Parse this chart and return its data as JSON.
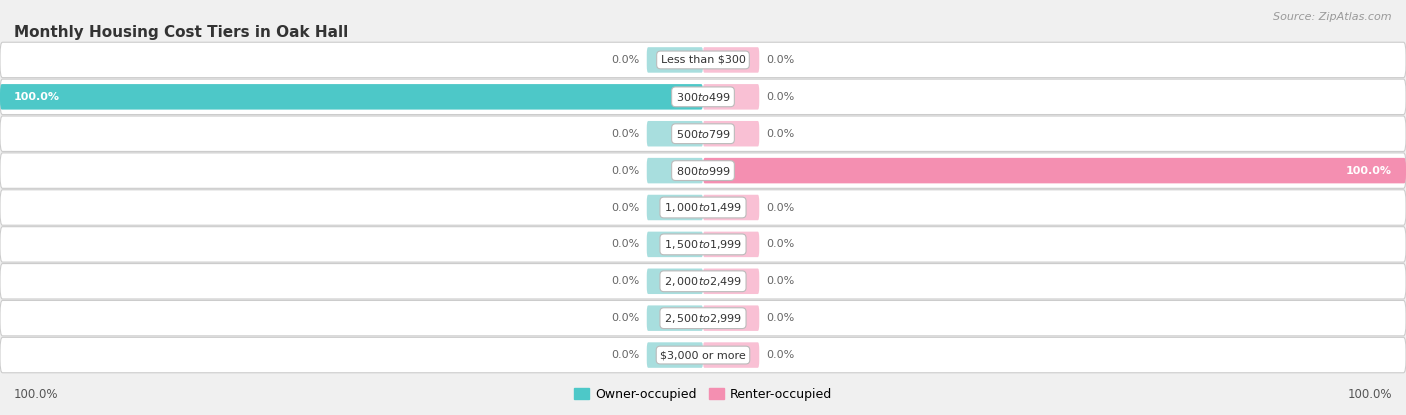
{
  "title": "Monthly Housing Cost Tiers in Oak Hall",
  "source": "Source: ZipAtlas.com",
  "categories": [
    "Less than $300",
    "$300 to $499",
    "$500 to $799",
    "$800 to $999",
    "$1,000 to $1,499",
    "$1,500 to $1,999",
    "$2,000 to $2,499",
    "$2,500 to $2,999",
    "$3,000 or more"
  ],
  "owner_values": [
    0.0,
    100.0,
    0.0,
    0.0,
    0.0,
    0.0,
    0.0,
    0.0,
    0.0
  ],
  "renter_values": [
    0.0,
    0.0,
    0.0,
    100.0,
    0.0,
    0.0,
    0.0,
    0.0,
    0.0
  ],
  "owner_color": "#4dc8c8",
  "renter_color": "#f48fb1",
  "owner_color_zero": "#a8dede",
  "renter_color_zero": "#f9c0d4",
  "bg_color": "#f0f0f0",
  "row_bg_color": "#e8e8e8",
  "row_fill_color": "#f8f8f8",
  "figsize": [
    14.06,
    4.15
  ],
  "dpi": 100,
  "legend_owner": "Owner-occupied",
  "legend_renter": "Renter-occupied",
  "bottom_left_label": "100.0%",
  "bottom_right_label": "100.0%"
}
